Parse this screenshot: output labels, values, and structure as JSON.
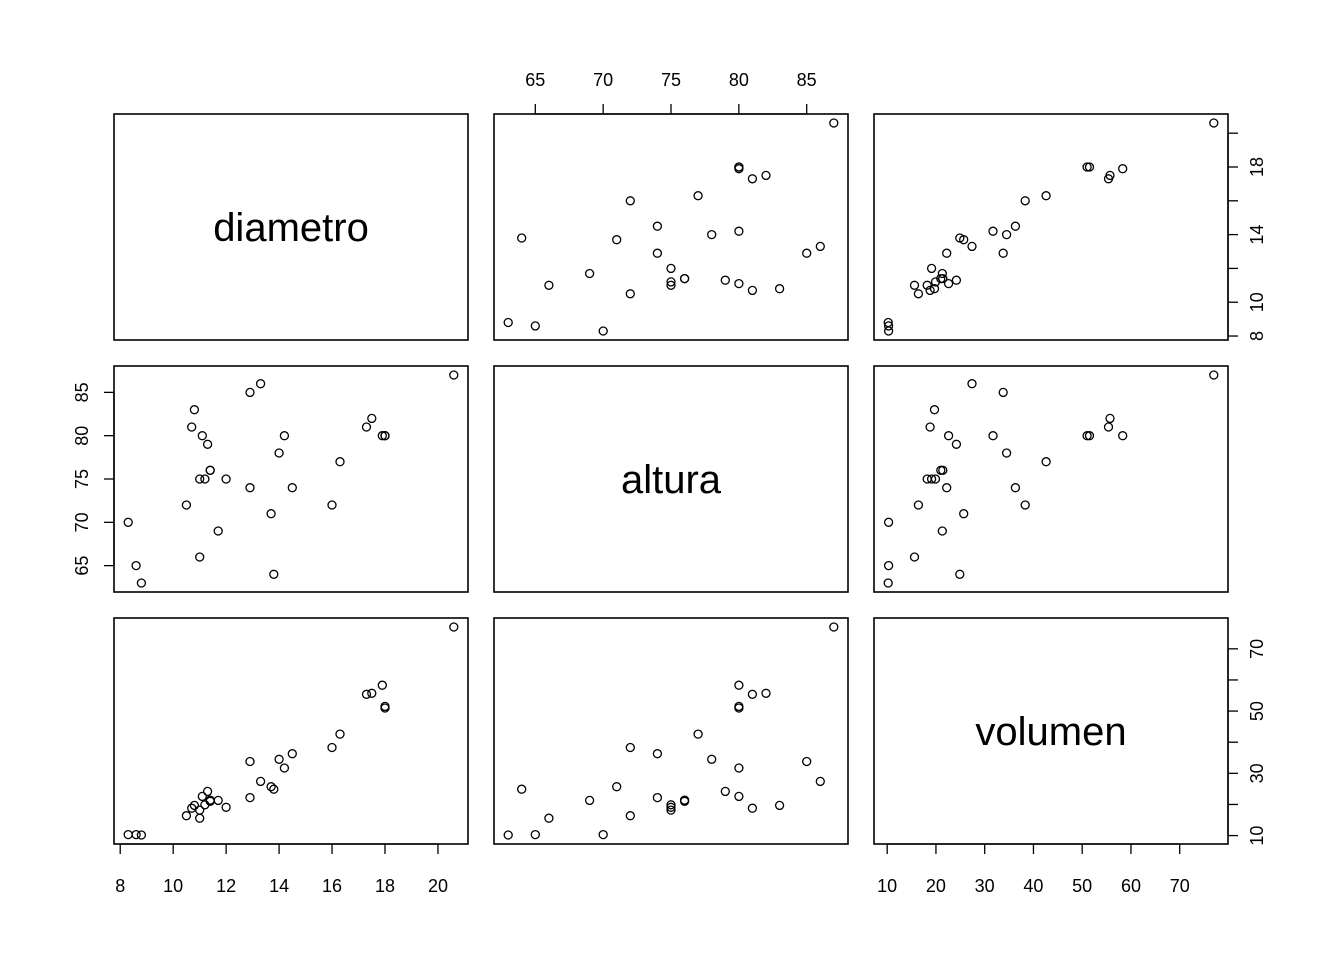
{
  "chart_data": {
    "type": "scatter",
    "variables": [
      "diametro",
      "altura",
      "volumen"
    ],
    "layout": "scatterplot-matrix",
    "grid": false,
    "axis_ranges": {
      "diametro": [
        8.3,
        20.6
      ],
      "altura": [
        63,
        87
      ],
      "volumen": [
        10.2,
        77.0
      ]
    },
    "ticks": {
      "diametro": [
        8,
        10,
        12,
        14,
        16,
        18,
        20
      ],
      "altura": [
        65,
        70,
        75,
        80,
        85
      ],
      "volumen": [
        10,
        20,
        30,
        40,
        50,
        60,
        70
      ]
    },
    "tick_labels_x": {
      "diametro": [
        "8",
        "10",
        "12",
        "14",
        "16",
        "18",
        "20"
      ],
      "altura": [
        "65",
        "70",
        "75",
        "80",
        "85"
      ],
      "volumen": [
        "10",
        "20",
        "30",
        "40",
        "50",
        "60",
        "70"
      ]
    },
    "tick_labels_y": {
      "diametro": [
        "8",
        "10",
        "14",
        "18"
      ],
      "altura": [
        "65",
        "70",
        "75",
        "80",
        "85"
      ],
      "volumen": [
        "10",
        "30",
        "50",
        "70"
      ]
    },
    "data": {
      "diametro": [
        8.3,
        8.6,
        8.8,
        10.5,
        10.7,
        10.8,
        11.0,
        11.0,
        11.1,
        11.2,
        11.3,
        11.4,
        11.4,
        11.7,
        12.0,
        12.9,
        12.9,
        13.3,
        13.7,
        13.8,
        14.0,
        14.2,
        14.5,
        16.0,
        16.3,
        17.3,
        17.5,
        17.9,
        18.0,
        18.0,
        20.6
      ],
      "altura": [
        70,
        65,
        63,
        72,
        81,
        83,
        66,
        75,
        80,
        75,
        79,
        76,
        76,
        69,
        75,
        74,
        85,
        86,
        71,
        64,
        78,
        80,
        74,
        72,
        77,
        81,
        82,
        80,
        80,
        80,
        87
      ],
      "volumen": [
        10.3,
        10.3,
        10.2,
        16.4,
        18.8,
        19.7,
        15.6,
        18.2,
        22.6,
        19.9,
        24.2,
        21.0,
        21.4,
        21.3,
        19.1,
        22.2,
        33.8,
        27.4,
        25.7,
        24.9,
        34.5,
        31.7,
        36.3,
        38.3,
        42.6,
        55.4,
        55.7,
        58.3,
        51.5,
        51.0,
        77.0
      ]
    }
  }
}
